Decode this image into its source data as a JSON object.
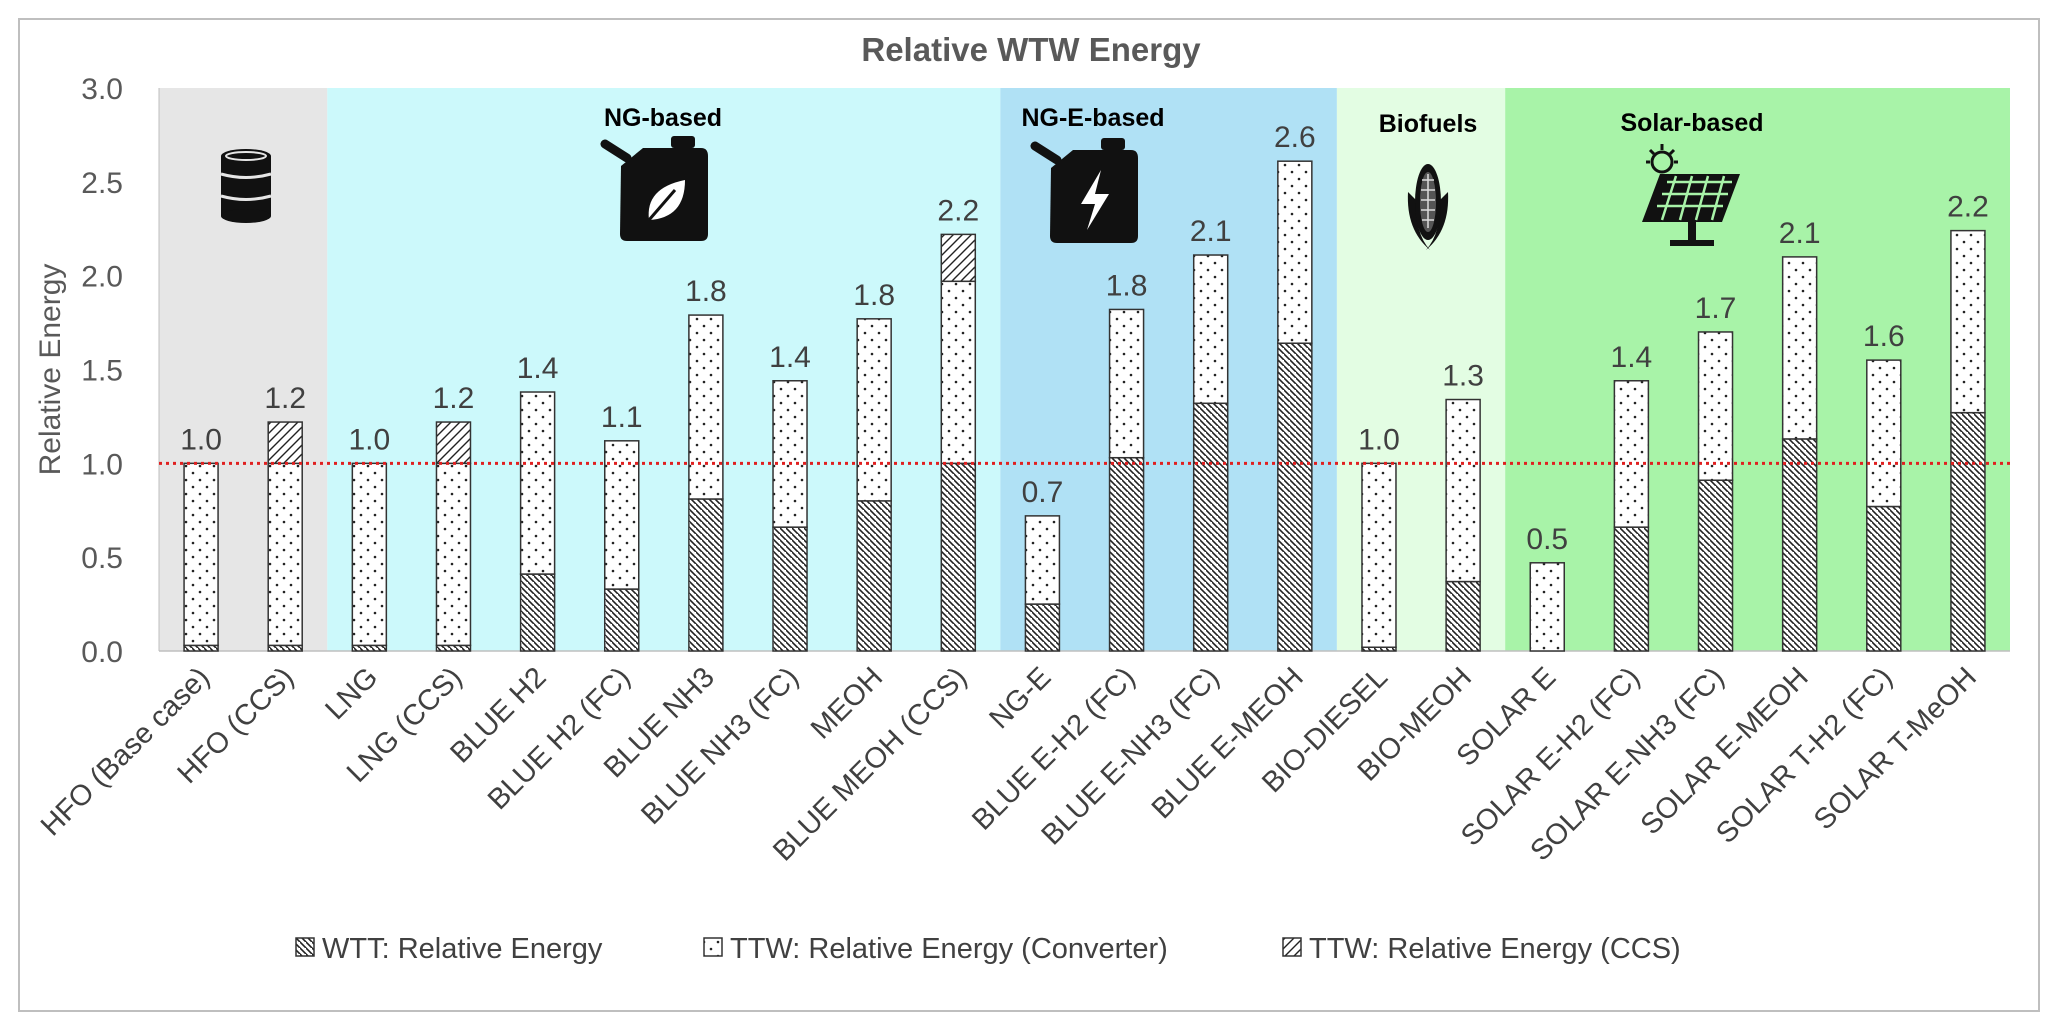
{
  "chart_data": {
    "type": "bar",
    "stacked": true,
    "title": "Relative WTW Energy",
    "xlabel": "",
    "ylabel": "Relative Energy",
    "ylim": [
      0,
      3.0
    ],
    "yticks": [
      "0.0",
      "0.5",
      "1.0",
      "1.5",
      "2.0",
      "2.5",
      "3.0"
    ],
    "reference_line": {
      "value": 1.0,
      "color": "#e02020",
      "style": "dotted"
    },
    "categories": [
      "HFO (Base case)",
      "HFO (CCS)",
      "LNG",
      "LNG (CCS)",
      "BLUE H2",
      "BLUE H2 (FC)",
      "BLUE NH3",
      "BLUE NH3 (FC)",
      "MEOH",
      "BLUE MEOH (CCS)",
      "NG-E",
      "BLUE E-H2 (FC)",
      "BLUE E-NH3 (FC)",
      "BLUE E-MEOH",
      "BIO-DIESEL",
      "BIO-MEOH",
      "SOLAR E",
      "SOLAR E-H2 (FC)",
      "SOLAR E-NH3 (FC)",
      "SOLAR E-MEOH",
      "SOLAR T-H2 (FC)",
      "SOLAR T-MeOH"
    ],
    "series": [
      {
        "name": "WTT: Relative Energy",
        "pattern": "crosshatch-dense",
        "values": [
          0.03,
          0.03,
          0.03,
          0.03,
          0.41,
          0.33,
          0.81,
          0.66,
          0.8,
          1.0,
          0.25,
          1.03,
          1.32,
          1.64,
          0.02,
          0.37,
          0.0,
          0.66,
          0.91,
          1.13,
          0.77,
          1.27
        ]
      },
      {
        "name": "TTW: Relative Energy (Converter)",
        "pattern": "dots",
        "values": [
          0.97,
          0.97,
          0.97,
          0.97,
          0.97,
          0.79,
          0.98,
          0.78,
          0.97,
          0.97,
          0.47,
          0.79,
          0.79,
          0.97,
          0.98,
          0.97,
          0.47,
          0.78,
          0.79,
          0.97,
          0.78,
          0.97
        ]
      },
      {
        "name": "TTW: Relative Energy (CCS)",
        "pattern": "diagonal",
        "values": [
          0,
          0.22,
          0,
          0.22,
          0,
          0,
          0,
          0,
          0,
          0.25,
          0,
          0,
          0,
          0,
          0,
          0,
          0,
          0,
          0,
          0,
          0,
          0
        ]
      }
    ],
    "data_labels": [
      "1.0",
      "1.2",
      "1.0",
      "1.2",
      "1.4",
      "1.1",
      "1.8",
      "1.4",
      "1.8",
      "2.2",
      "0.7",
      "1.8",
      "2.1",
      "2.6",
      "1.0",
      "1.3",
      "0.5",
      "1.4",
      "1.7",
      "2.1",
      "1.6",
      "2.2"
    ],
    "regions": [
      {
        "label": "",
        "start": 0,
        "end": 1,
        "color": "#e6e6e6",
        "icon": "oil-barrel-icon"
      },
      {
        "label": "NG-based",
        "start": 2,
        "end": 9,
        "color": "#ccf9fb",
        "icon": "leaf-fuel-can-icon"
      },
      {
        "label": "NG-E-based",
        "start": 10,
        "end": 13,
        "color": "#b0e1f5",
        "icon": "lightning-fuel-can-icon"
      },
      {
        "label": "Biofuels",
        "start": 14,
        "end": 15,
        "color": "#e3fde3",
        "icon": "corn-icon"
      },
      {
        "label": "Solar-based",
        "start": 16,
        "end": 21,
        "color": "#a8f3a8",
        "icon": "solar-panel-icon"
      }
    ],
    "legend": {
      "position": "bottom"
    }
  }
}
